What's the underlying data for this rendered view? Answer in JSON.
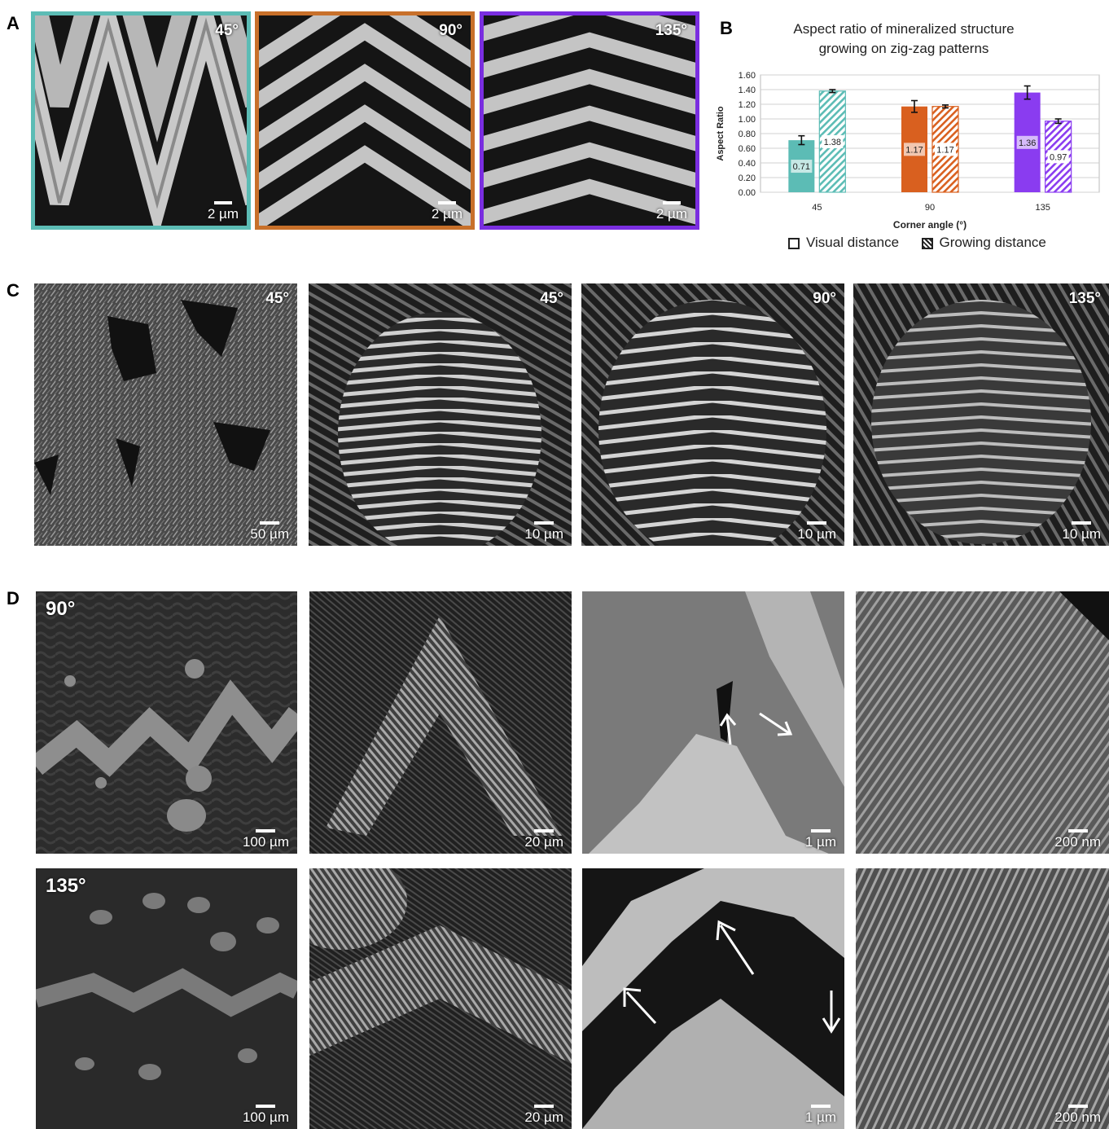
{
  "panel_labels": {
    "a": "A",
    "b": "B",
    "c": "C",
    "d": "D"
  },
  "panel_a": [
    {
      "angle": "45°",
      "scale": "2 µm",
      "border": "#5cbcb5"
    },
    {
      "angle": "90°",
      "scale": "2 µm",
      "border": "#c8702a"
    },
    {
      "angle": "135°",
      "scale": "2 µm",
      "border": "#7a2ee0"
    }
  ],
  "chart_data": {
    "type": "bar",
    "title_line1": "Aspect ratio of mineralized structure",
    "title_line2": "growing on zig-zag patterns",
    "xlabel": "Corner angle (°)",
    "ylabel": "Aspect Ratio",
    "categories": [
      "45",
      "90",
      "135"
    ],
    "ylim": [
      0,
      1.6
    ],
    "yticks": [
      "0.00",
      "0.20",
      "0.40",
      "0.60",
      "0.80",
      "1.00",
      "1.20",
      "1.40",
      "1.60"
    ],
    "series": [
      {
        "name": "Visual distance",
        "values": [
          0.71,
          1.17,
          1.36
        ],
        "errors": [
          0.06,
          0.08,
          0.09
        ],
        "labels": [
          "0.71",
          "1.17",
          "1.36"
        ]
      },
      {
        "name": "Growing distance",
        "values": [
          1.38,
          1.17,
          0.97
        ],
        "errors": [
          0.02,
          0.02,
          0.03
        ],
        "labels": [
          "1.38",
          "1.17",
          "0.97"
        ]
      }
    ],
    "colors": [
      "#5cbcb5",
      "#d9601f",
      "#8a3cf0"
    ],
    "grid": true,
    "legend_position": "bottom"
  },
  "panel_c": [
    {
      "angle": "45°",
      "scale": "50 µm"
    },
    {
      "angle": "45°",
      "scale": "10 µm"
    },
    {
      "angle": "90°",
      "scale": "10 µm"
    },
    {
      "angle": "135°",
      "scale": "10 µm"
    }
  ],
  "panel_d_row1": [
    {
      "angle": "90°",
      "scale": "100 µm"
    },
    {
      "angle": "",
      "scale": "20 µm"
    },
    {
      "angle": "",
      "scale": "1 µm"
    },
    {
      "angle": "",
      "scale": "200 nm"
    }
  ],
  "panel_d_row2": [
    {
      "angle": "135°",
      "scale": "100 µm"
    },
    {
      "angle": "",
      "scale": "20 µm"
    },
    {
      "angle": "",
      "scale": "1 µm"
    },
    {
      "angle": "",
      "scale": "200 nm"
    }
  ]
}
